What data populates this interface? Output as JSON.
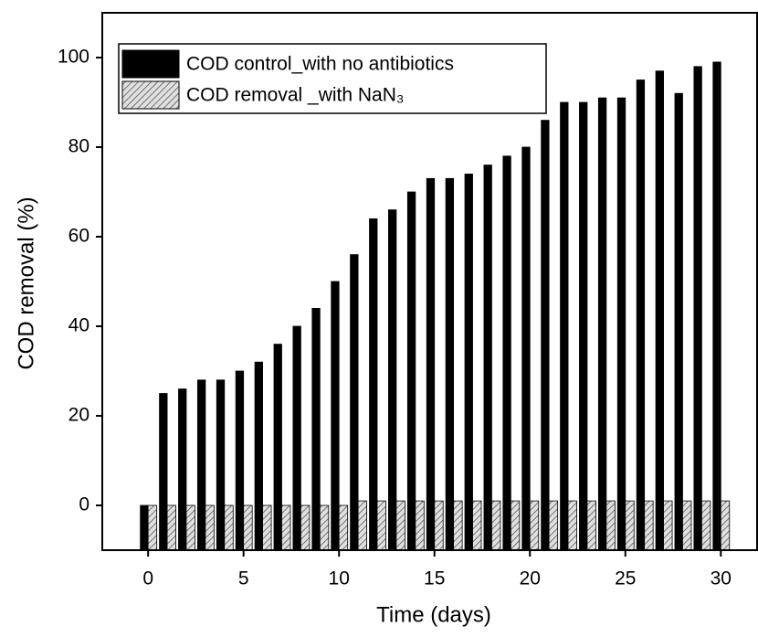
{
  "chart_data": {
    "type": "bar",
    "x_label": "Time (days)",
    "y_label": "COD removal (%)",
    "x": [
      0,
      1,
      2,
      3,
      4,
      5,
      6,
      7,
      8,
      9,
      10,
      11,
      12,
      13,
      14,
      15,
      16,
      17,
      18,
      19,
      20,
      21,
      22,
      23,
      24,
      25,
      26,
      27,
      28,
      29,
      30
    ],
    "series": [
      {
        "name": "COD control_with no antibiotics",
        "color": "#000000",
        "values": [
          0,
          25,
          26,
          28,
          28,
          30,
          32,
          36,
          40,
          44,
          50,
          56,
          64,
          66,
          70,
          73,
          73,
          74,
          76,
          78,
          80,
          86,
          90,
          90,
          91,
          91,
          95,
          97,
          92,
          98,
          99
        ]
      },
      {
        "name": "COD removal _with NaN₃",
        "color": "#c8c8c8",
        "values": [
          0,
          0,
          0,
          0,
          0,
          0,
          0,
          0,
          0,
          0,
          0,
          1,
          1,
          1,
          1,
          1,
          1,
          1,
          1,
          1,
          1,
          1,
          1,
          1,
          1,
          1,
          1,
          1,
          1,
          1,
          1
        ]
      }
    ],
    "xlim": [
      -2.4,
      31.9
    ],
    "xticks": [
      0,
      5,
      10,
      15,
      20,
      25,
      30
    ],
    "ylim": [
      -10,
      110
    ],
    "yticks": [
      0,
      20,
      40,
      60,
      80,
      100
    ],
    "legend": "upper left"
  }
}
